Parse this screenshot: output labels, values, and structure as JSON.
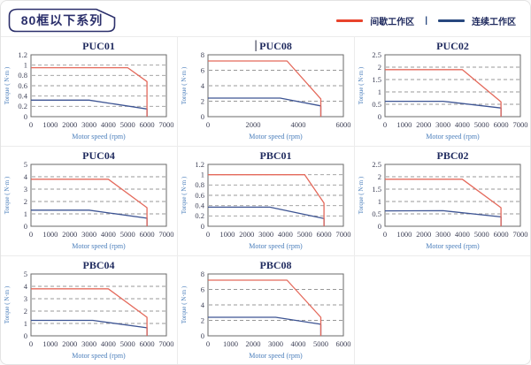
{
  "page": {
    "header_badge": "80框以下系列",
    "legend": {
      "intermittent_label": "间歇工作区",
      "separator": "|",
      "continuous_label": "连续工作区",
      "intermittent_color": "#e8432c",
      "continuous_color": "#27477e"
    }
  },
  "colors": {
    "intermittent": "#e4695b",
    "continuous": "#3d5493",
    "legend_intermittent": "#e8432c",
    "legend_continuous": "#27477e",
    "title_text": "#1f2a5e",
    "tick_text": "#3c3f55",
    "axis_label_text": "#4a7ebb",
    "gridline": "#989898",
    "plot_border": "#6a6a6a",
    "badge_outline": "#2b2f6b",
    "cell_border": "#ececec"
  },
  "chart_data": [
    {
      "type": "line",
      "title": "PUC01",
      "xlabel": "Motor speed (rpm)",
      "ylabel": "Torque ( N·m )",
      "xlim": [
        0,
        7000
      ],
      "xticks": [
        0,
        1000,
        2000,
        3000,
        4000,
        5000,
        6000,
        7000
      ],
      "ylim": [
        0,
        1.2
      ],
      "yticks": [
        0,
        0.2,
        0.4,
        0.6,
        0.8,
        1,
        1.2
      ],
      "grid": "dashed-horizontal",
      "legend_position": "shared-top-right",
      "series": [
        {
          "name": "间歇工作区",
          "key": "intermittent",
          "points": [
            [
              0,
              0.95
            ],
            [
              5000,
              0.95
            ],
            [
              6000,
              0.68
            ],
            [
              6000,
              0
            ]
          ]
        },
        {
          "name": "连续工作区",
          "key": "continuous",
          "points": [
            [
              0,
              0.32
            ],
            [
              3000,
              0.32
            ],
            [
              6000,
              0.15
            ],
            [
              6000,
              0
            ]
          ]
        }
      ]
    },
    {
      "type": "line",
      "title": "PUC08",
      "title_caret": "|",
      "xlabel": "Motor speed (rpm)",
      "ylabel": "Torque ( N·m )",
      "xlim": [
        0,
        6000
      ],
      "xticks": [
        0,
        2000,
        4000,
        6000
      ],
      "ylim": [
        0,
        8
      ],
      "yticks": [
        0,
        2,
        4,
        6,
        8
      ],
      "grid": "dashed-horizontal",
      "legend_position": "shared-top-right",
      "series": [
        {
          "name": "间歇工作区",
          "key": "intermittent",
          "points": [
            [
              0,
              7.2
            ],
            [
              3500,
              7.2
            ],
            [
              5000,
              2.3
            ],
            [
              5000,
              0
            ]
          ]
        },
        {
          "name": "连续工作区",
          "key": "continuous",
          "points": [
            [
              0,
              2.4
            ],
            [
              3200,
              2.4
            ],
            [
              5000,
              1.4
            ],
            [
              5000,
              0
            ]
          ]
        }
      ]
    },
    {
      "type": "line",
      "title": "PUC02",
      "xlabel": "Motor speed (rpm)",
      "ylabel": "Torque ( N·m )",
      "xlim": [
        0,
        7000
      ],
      "xticks": [
        0,
        1000,
        2000,
        3000,
        4000,
        5000,
        6000,
        7000
      ],
      "ylim": [
        0,
        2.5
      ],
      "yticks": [
        0,
        0.5,
        1,
        1.5,
        2,
        2.5
      ],
      "grid": "dashed-horizontal",
      "legend_position": "shared-top-right",
      "series": [
        {
          "name": "间歇工作区",
          "key": "intermittent",
          "points": [
            [
              0,
              1.9
            ],
            [
              4000,
              1.9
            ],
            [
              6000,
              0.6
            ],
            [
              6000,
              0
            ]
          ]
        },
        {
          "name": "连续工作区",
          "key": "continuous",
          "points": [
            [
              0,
              0.62
            ],
            [
              3000,
              0.62
            ],
            [
              6000,
              0.35
            ],
            [
              6000,
              0
            ]
          ]
        }
      ]
    },
    {
      "type": "line",
      "title": "PUC04",
      "xlabel": "Motor speed (rpm)",
      "ylabel": "Torque ( N·m )",
      "xlim": [
        0,
        7000
      ],
      "xticks": [
        0,
        1000,
        2000,
        3000,
        4000,
        5000,
        6000,
        7000
      ],
      "ylim": [
        0,
        5
      ],
      "yticks": [
        0,
        1,
        2,
        3,
        4,
        5
      ],
      "grid": "dashed-horizontal",
      "legend_position": "shared-top-right",
      "series": [
        {
          "name": "间歇工作区",
          "key": "intermittent",
          "points": [
            [
              0,
              3.8
            ],
            [
              4000,
              3.8
            ],
            [
              6000,
              1.5
            ],
            [
              6000,
              0
            ]
          ]
        },
        {
          "name": "连续工作区",
          "key": "continuous",
          "points": [
            [
              0,
              1.3
            ],
            [
              3000,
              1.3
            ],
            [
              6000,
              0.65
            ],
            [
              6000,
              0
            ]
          ]
        }
      ]
    },
    {
      "type": "line",
      "title": "PBC01",
      "xlabel": "Motor speed (rpm)",
      "ylabel": "Torque ( N·m )",
      "xlim": [
        0,
        7000
      ],
      "xticks": [
        0,
        1000,
        2000,
        3000,
        4000,
        5000,
        6000,
        7000
      ],
      "ylim": [
        0,
        1.2
      ],
      "yticks": [
        0,
        0.2,
        0.4,
        0.6,
        0.8,
        1,
        1.2
      ],
      "grid": "dashed-horizontal",
      "legend_position": "shared-top-right",
      "series": [
        {
          "name": "间歇工作区",
          "key": "intermittent",
          "points": [
            [
              0,
              1.0
            ],
            [
              5000,
              1.0
            ],
            [
              6000,
              0.45
            ],
            [
              6000,
              0
            ]
          ]
        },
        {
          "name": "连续工作区",
          "key": "continuous",
          "points": [
            [
              0,
              0.37
            ],
            [
              3200,
              0.37
            ],
            [
              6000,
              0.15
            ],
            [
              6000,
              0
            ]
          ]
        }
      ]
    },
    {
      "type": "line",
      "title": "PBC02",
      "xlabel": "Motor speed (rpm)",
      "ylabel": "Torque ( N·m )",
      "xlim": [
        0,
        7000
      ],
      "xticks": [
        0,
        1000,
        2000,
        3000,
        4000,
        5000,
        6000,
        7000
      ],
      "ylim": [
        0,
        2.5
      ],
      "yticks": [
        0,
        0.5,
        1,
        1.5,
        2,
        2.5
      ],
      "grid": "dashed-horizontal",
      "legend_position": "shared-top-right",
      "series": [
        {
          "name": "间歇工作区",
          "key": "intermittent",
          "points": [
            [
              0,
              1.9
            ],
            [
              4000,
              1.9
            ],
            [
              6000,
              0.75
            ],
            [
              6000,
              0
            ]
          ]
        },
        {
          "name": "连续工作区",
          "key": "continuous",
          "points": [
            [
              0,
              0.62
            ],
            [
              3000,
              0.63
            ],
            [
              6000,
              0.38
            ],
            [
              6000,
              0
            ]
          ]
        }
      ]
    },
    {
      "type": "line",
      "title": "PBC04",
      "xlabel": "Motor speed (rpm)",
      "ylabel": "Torque ( N·m )",
      "xlim": [
        0,
        7000
      ],
      "xticks": [
        0,
        1000,
        2000,
        3000,
        4000,
        5000,
        6000,
        7000
      ],
      "ylim": [
        0,
        5
      ],
      "yticks": [
        0,
        1,
        2,
        3,
        4,
        5
      ],
      "grid": "dashed-horizontal",
      "legend_position": "shared-top-right",
      "series": [
        {
          "name": "间歇工作区",
          "key": "intermittent",
          "points": [
            [
              0,
              3.8
            ],
            [
              4000,
              3.8
            ],
            [
              6000,
              1.5
            ],
            [
              6000,
              0
            ]
          ]
        },
        {
          "name": "连续工作区",
          "key": "continuous",
          "points": [
            [
              0,
              1.25
            ],
            [
              3200,
              1.25
            ],
            [
              6000,
              0.65
            ],
            [
              6000,
              0
            ]
          ]
        }
      ]
    },
    {
      "type": "line",
      "title": "PBC08",
      "xlabel": "Motor speed (rpm)",
      "ylabel": "Torque ( N·m )",
      "xlim": [
        0,
        6000
      ],
      "xticks": [
        0,
        1000,
        2000,
        3000,
        4000,
        5000,
        6000
      ],
      "ylim": [
        0,
        8
      ],
      "yticks": [
        0,
        2,
        4,
        6,
        8
      ],
      "grid": "dashed-horizontal",
      "legend_position": "shared-top-right",
      "series": [
        {
          "name": "间歇工作区",
          "key": "intermittent",
          "points": [
            [
              0,
              7.2
            ],
            [
              3500,
              7.2
            ],
            [
              5000,
              2.4
            ],
            [
              5000,
              0
            ]
          ]
        },
        {
          "name": "连续工作区",
          "key": "continuous",
          "points": [
            [
              0,
              2.4
            ],
            [
              3000,
              2.4
            ],
            [
              5000,
              1.5
            ],
            [
              5000,
              0
            ]
          ]
        }
      ]
    }
  ]
}
